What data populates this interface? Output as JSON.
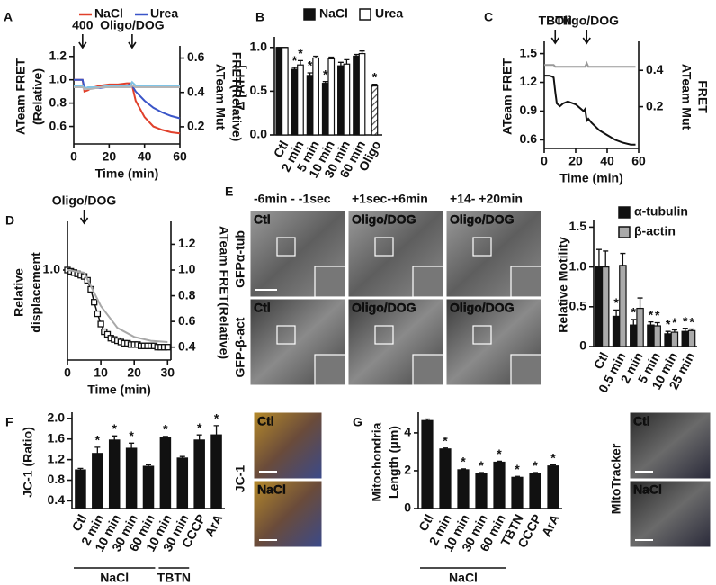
{
  "chart_data": [
    {
      "type": "line",
      "panel_label": "A",
      "ylabel": [
        "ATeam FRET",
        "(Relative)"
      ],
      "y2label": [
        "ATeam Mut",
        "FRET(Relative)"
      ],
      "xlabel": "Time (min)",
      "xlim": [
        0,
        60
      ],
      "xticks": [
        0,
        20,
        40,
        60
      ],
      "ylim": [
        0.45,
        1.26
      ],
      "yticks": [
        0.6,
        0.8,
        {
          "value": 1,
          "label": "1.0"
        },
        1.2
      ],
      "y2lim": [
        0.1,
        0.65
      ],
      "y2ticks": [
        0.2,
        0.4,
        0.6
      ],
      "annotations": [
        {
          "text": "400",
          "x": 5
        },
        {
          "text": "Oligo/DOG",
          "x": 33
        }
      ],
      "x": [
        0,
        2,
        4,
        5,
        6,
        8,
        10,
        15,
        20,
        25,
        30,
        32,
        33,
        35,
        40,
        45,
        50,
        55,
        60
      ],
      "series": [
        {
          "name": "NaCl",
          "color": "#e0402b",
          "values": [
            1.0,
            1.0,
            1.0,
            1.0,
            0.9,
            0.91,
            0.93,
            0.95,
            0.96,
            0.96,
            0.97,
            0.97,
            0.95,
            0.82,
            0.68,
            0.6,
            0.57,
            0.55,
            0.54
          ]
        },
        {
          "name": "Urea",
          "color": "#3a55c8",
          "values": [
            1.0,
            1.0,
            1.0,
            1.0,
            0.93,
            0.93,
            0.93,
            0.93,
            0.94,
            0.94,
            0.95,
            0.96,
            0.95,
            0.9,
            0.82,
            0.76,
            0.72,
            0.69,
            0.67
          ]
        },
        {
          "color": "#7fc4e6",
          "axis": "y2",
          "values": [
            0.44,
            0.44,
            0.44,
            0.44,
            0.42,
            0.43,
            0.43,
            0.43,
            0.44,
            0.44,
            0.44,
            0.44,
            0.46,
            0.44,
            0.44,
            0.44,
            0.44,
            0.44,
            0.44
          ]
        },
        {
          "color": "#b5b5b5",
          "axis": "y2",
          "values": [
            0.43,
            0.43,
            0.43,
            0.43,
            0.42,
            0.42,
            0.42,
            0.43,
            0.43,
            0.43,
            0.43,
            0.43,
            0.44,
            0.43,
            0.43,
            0.43,
            0.43,
            0.43,
            0.43
          ]
        }
      ]
    },
    {
      "type": "bar",
      "panel_label": "B",
      "ylabel": [
        "Δ [ATP]"
      ],
      "categories": [
        "Ctl",
        "2 min",
        "5 min",
        "10 min",
        "30 min",
        "60 min",
        "Oligo"
      ],
      "ylim": [
        0,
        1.08
      ],
      "yticks": [
        {
          "value": 0,
          "label": "0.0"
        },
        0.5,
        {
          "value": 1,
          "label": "1.0"
        }
      ],
      "series": [
        {
          "name": "NaCl",
          "color": "#111111",
          "values": [
            1.0,
            0.75,
            0.68,
            0.59,
            0.79,
            0.9,
            null
          ],
          "errors": [
            0,
            0.02,
            0.03,
            0.02,
            0.04,
            0.02,
            null
          ],
          "significance": [
            null,
            "*",
            "*",
            "*",
            null,
            null,
            null
          ]
        },
        {
          "name": "Urea",
          "color": "#ffffff",
          "values": [
            1.0,
            0.8,
            0.88,
            0.87,
            0.81,
            0.93,
            null
          ],
          "errors": [
            0,
            0.05,
            0.02,
            0.02,
            0.05,
            0.03,
            null
          ],
          "significance": [
            null,
            "*",
            null,
            null,
            null,
            null,
            null
          ]
        },
        {
          "color": "#888888",
          "pattern": "hatch",
          "values": [
            null,
            null,
            null,
            null,
            null,
            null,
            0.56
          ],
          "errors": [
            null,
            null,
            null,
            null,
            null,
            null,
            0.02
          ],
          "significance": [
            null,
            null,
            null,
            null,
            null,
            null,
            "*"
          ]
        }
      ]
    },
    {
      "type": "line",
      "panel_label": "C",
      "ylabel": [
        "ATeam FRET"
      ],
      "y2label": [
        "ATeam Mut",
        "FRET"
      ],
      "xlabel": "Time (min)",
      "xlim": [
        0,
        60
      ],
      "xticks": [
        0,
        20,
        40,
        60
      ],
      "ylim": [
        0.51,
        1.59
      ],
      "yticks": [
        0.6,
        0.9,
        1.2,
        1.5
      ],
      "y2lim": [
        -0.03,
        0.54
      ],
      "y2ticks": [
        0.2,
        0.4
      ],
      "annotations": [
        {
          "text": "TBTN",
          "x": 7
        },
        {
          "text": "Oligo/DOG",
          "x": 27
        }
      ],
      "x": [
        0,
        3,
        5,
        6,
        7,
        8,
        10,
        12,
        15,
        20,
        25,
        26,
        27,
        28,
        30,
        35,
        40,
        45,
        50,
        55,
        58
      ],
      "series": [
        {
          "color": "#111111",
          "values": [
            1.27,
            1.27,
            1.26,
            1.25,
            1.1,
            0.98,
            0.95,
            0.98,
            1.0,
            0.97,
            0.9,
            0.92,
            0.8,
            0.82,
            0.78,
            0.7,
            0.65,
            0.6,
            0.57,
            0.55,
            0.55
          ]
        },
        {
          "color": "#999999",
          "axis": "y2",
          "values": [
            0.43,
            0.43,
            0.43,
            0.43,
            0.42,
            0.42,
            0.42,
            0.42,
            0.42,
            0.42,
            0.42,
            0.42,
            0.44,
            0.42,
            0.42,
            0.42,
            0.42,
            0.42,
            0.42,
            0.42,
            0.42
          ]
        }
      ]
    },
    {
      "type": "line",
      "panel_label": "D",
      "ylabel": [
        "Relative",
        "displacement"
      ],
      "y2label": [
        "ATeam FRET(Relative)"
      ],
      "xlabel": "Time (min)",
      "xlim": [
        0,
        31
      ],
      "xticks": [
        0,
        10,
        20,
        30
      ],
      "ylim": [
        0.3,
        1.35
      ],
      "yticks": [
        {
          "value": 1,
          "label": "1.0"
        }
      ],
      "y2lim": [
        0.3,
        1.35
      ],
      "y2ticks": [
        0.4,
        0.6,
        0.8,
        {
          "value": 1,
          "label": "1.0"
        },
        1.2
      ],
      "annotations": [
        {
          "text": "Oligo/DOG",
          "x": 5
        }
      ],
      "x": [
        0,
        1,
        2,
        3,
        4,
        5,
        6,
        7,
        8,
        9,
        10,
        11,
        12,
        13,
        14,
        15,
        16,
        17,
        18,
        19,
        20,
        21,
        22,
        23,
        24,
        25,
        26,
        27,
        28,
        29,
        30
      ],
      "series": [
        {
          "color": "#111111",
          "markers": true,
          "values": [
            1.0,
            0.99,
            0.98,
            0.97,
            0.96,
            0.95,
            0.92,
            0.85,
            0.75,
            0.66,
            0.58,
            0.52,
            0.5,
            0.47,
            0.46,
            0.45,
            0.44,
            0.43,
            0.43,
            0.42,
            0.42,
            0.42,
            0.41,
            0.41,
            0.41,
            0.41,
            0.41,
            0.4,
            0.4,
            0.4,
            0.4
          ]
        },
        {
          "color": "#a8a8a8",
          "axis": "y2",
          "x": [
            0,
            5,
            10,
            15,
            20,
            25,
            30
          ],
          "values": [
            1.0,
            0.98,
            0.72,
            0.55,
            0.48,
            0.45,
            0.44
          ]
        }
      ]
    },
    {
      "type": "bar",
      "ylabel": [
        "Relative Motility"
      ],
      "categories": [
        "Ctl",
        "0.5 min",
        "2 min",
        "5 min",
        "10 min",
        "25 min"
      ],
      "ylim": [
        0,
        1.55
      ],
      "yticks": [
        0,
        0.5,
        {
          "value": 1,
          "label": "1.0"
        },
        1.5
      ],
      "series": [
        {
          "name": "α-tubulin",
          "color": "#111111",
          "values": [
            1.0,
            0.38,
            0.27,
            0.27,
            0.16,
            0.19
          ],
          "errors": [
            0.22,
            0.08,
            0.07,
            0.04,
            0.03,
            0.04
          ],
          "significance": [
            null,
            "*",
            "*",
            "*",
            "*",
            "*"
          ]
        },
        {
          "name": "β-actin",
          "color": "#aaaaaa",
          "values": [
            1.0,
            1.02,
            0.48,
            0.26,
            0.18,
            0.2
          ],
          "errors": [
            0.2,
            0.15,
            0.13,
            0.04,
            0.03,
            0.02
          ],
          "significance": [
            null,
            null,
            null,
            "*",
            "*",
            "*"
          ]
        }
      ]
    },
    {
      "type": "bar",
      "panel_label": "F",
      "ylabel": [
        "JC-1 (Ratio)"
      ],
      "categories": [
        "Ctl",
        "2 min",
        "10 min",
        "30 min",
        "60 min",
        "10 min",
        "30 min",
        "CCCP",
        "ArA"
      ],
      "ylim": [
        0.25,
        2.05
      ],
      "yticks": [
        0.4,
        0.8,
        1.2,
        1.6,
        {
          "value": 2,
          "label": "2.0"
        }
      ],
      "groups": [
        {
          "label": "NaCl",
          "from": 0,
          "to": 4
        },
        {
          "label": "TBTN",
          "from": 5,
          "to": 6
        }
      ],
      "series": [
        {
          "color": "#111111",
          "values": [
            1.0,
            1.32,
            1.58,
            1.42,
            1.07,
            1.62,
            1.23,
            1.58,
            1.68
          ],
          "errors": [
            0.03,
            0.12,
            0.08,
            0.1,
            0.03,
            0.03,
            0.03,
            0.1,
            0.18
          ],
          "significance": [
            null,
            "*",
            "*",
            "*",
            null,
            "*",
            null,
            "*",
            "*"
          ]
        }
      ]
    },
    {
      "type": "bar",
      "panel_label": "G",
      "ylabel": [
        "Mitochondria",
        "Length (μm)"
      ],
      "categories": [
        "Ctl",
        "2 min",
        "10 min",
        "30 min",
        "60 min",
        "TBTN",
        "CCCP",
        "ArA"
      ],
      "ylim": [
        0,
        4.9
      ],
      "yticks": [
        0,
        2,
        4
      ],
      "groups": [
        {
          "label": "NaCl",
          "from": 0,
          "to": 4
        }
      ],
      "series": [
        {
          "color": "#111111",
          "values": [
            4.65,
            3.15,
            2.05,
            1.85,
            2.45,
            1.65,
            1.85,
            2.25
          ],
          "errors": [
            0.08,
            0.05,
            0.05,
            0.05,
            0.05,
            0.05,
            0.05,
            0.05
          ],
          "significance": [
            null,
            "*",
            "*",
            "*",
            "*",
            "*",
            "*",
            "*"
          ]
        }
      ]
    }
  ],
  "images": [
    {
      "panel_label": "E",
      "column_titles": [
        "-6min - -1sec",
        "+1sec-+6min",
        "+14- +20min"
      ],
      "row_labels": [
        "GFPα-tub",
        "GFP-β-act"
      ],
      "cells": [
        [
          "Ctl",
          "Oligo/DOG",
          "Oligo/DOG"
        ],
        [
          "Ctl",
          "Oligo/DOG",
          "Oligo/DOG"
        ]
      ]
    },
    {
      "side_label": "JC-1",
      "cells": [
        [
          "Ctl"
        ],
        [
          "NaCl"
        ]
      ]
    },
    {
      "side_label": "MitoTracker",
      "cells": [
        [
          "Ctl"
        ],
        [
          "NaCl"
        ]
      ]
    }
  ]
}
